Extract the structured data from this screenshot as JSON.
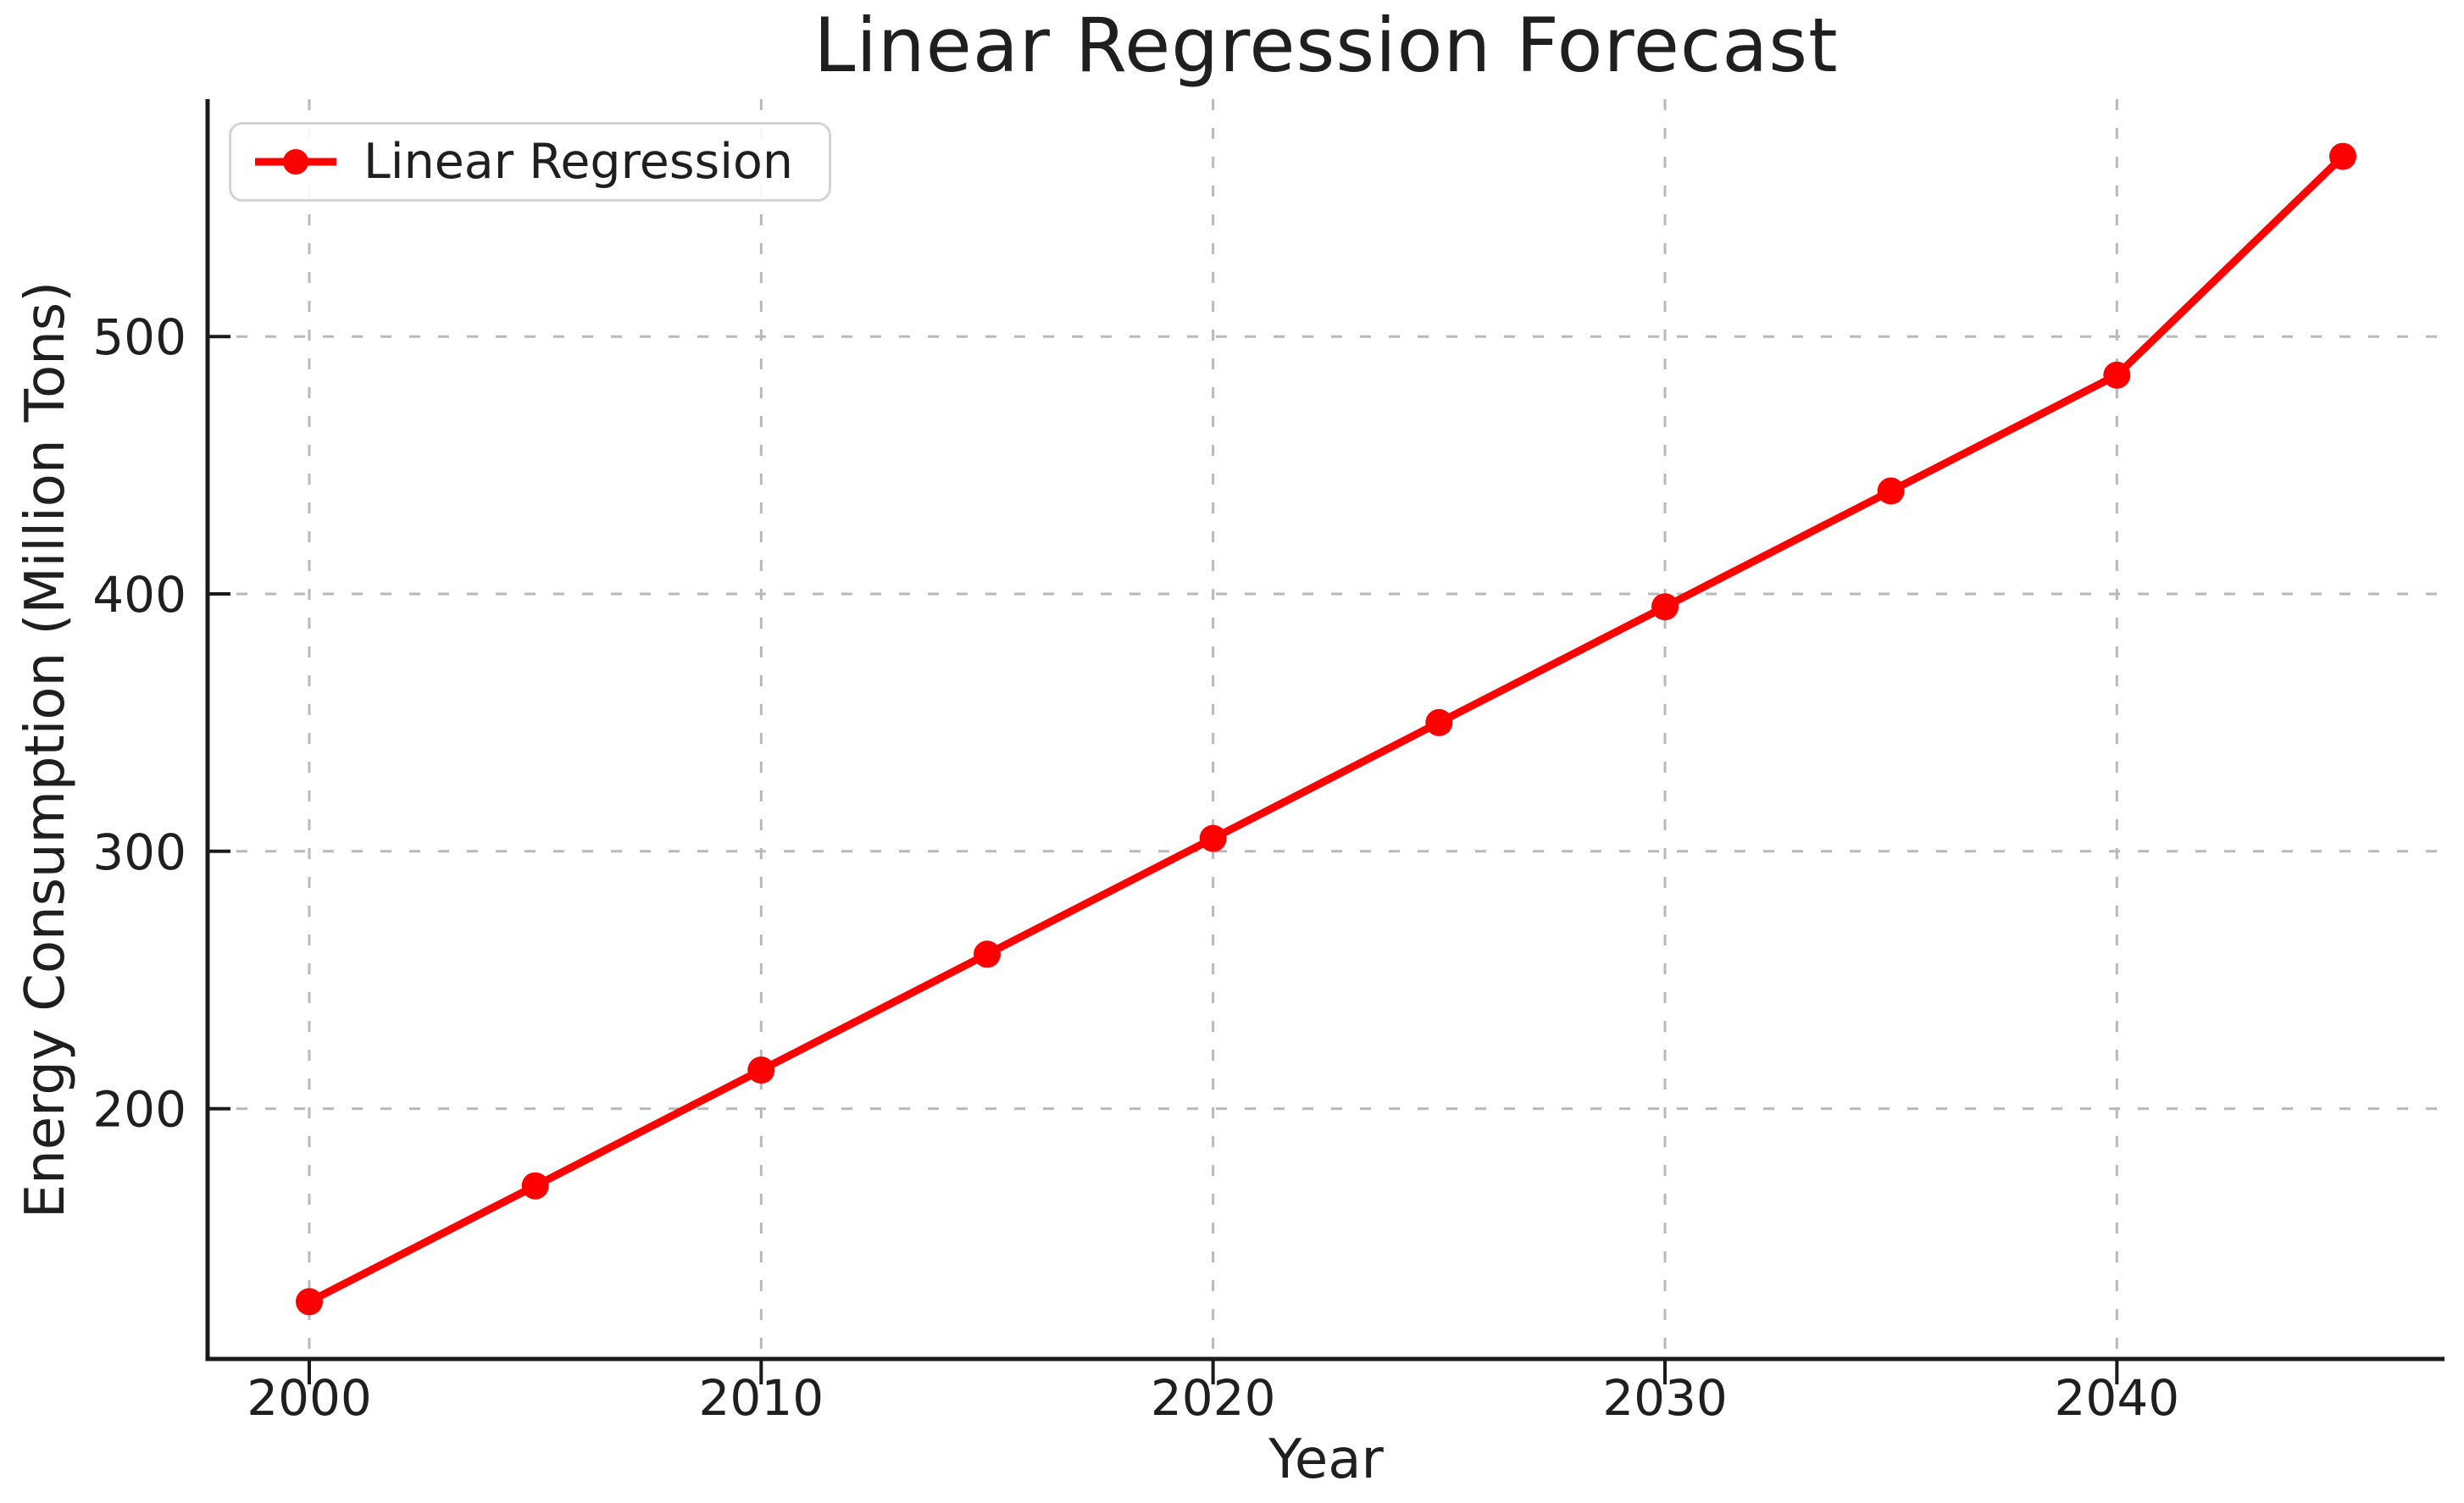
{
  "figure": {
    "background": "#ffffff"
  },
  "chart_data": {
    "type": "line",
    "title": "Linear Regression Forecast",
    "xlabel": "Year",
    "ylabel": "Energy Consumption (Million Tons)",
    "x": [
      2000,
      2005,
      2010,
      2015,
      2020,
      2025,
      2030,
      2035,
      2040,
      2045
    ],
    "series": [
      {
        "name": "Linear Regression",
        "color": "#ff0000",
        "marker": "circle",
        "values": [
          125,
          170,
          215,
          260,
          305,
          350,
          395,
          440,
          485,
          570
        ]
      }
    ],
    "xlim": [
      1997.75,
      2047.25
    ],
    "ylim": [
      102.75,
      592.25
    ],
    "x_ticks": [
      2000,
      2010,
      2020,
      2030,
      2040
    ],
    "y_ticks": [
      200,
      300,
      400,
      500
    ],
    "grid": "dashed",
    "grid_color": "#b9b9b9",
    "axis_color": "#1a1a1a",
    "legend": {
      "position": "upper-left",
      "entries": [
        "Linear Regression"
      ]
    }
  }
}
